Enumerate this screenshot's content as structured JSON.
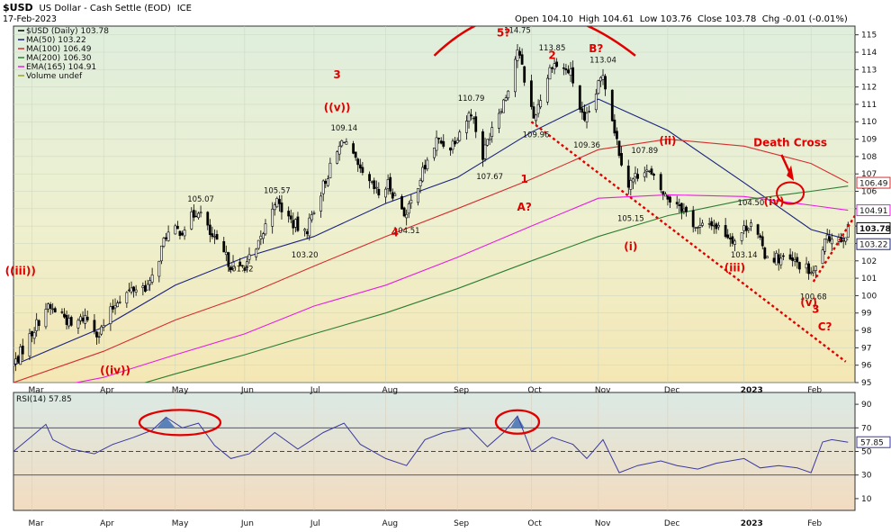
{
  "header": {
    "symbol": "$USD",
    "name": "US Dollar - Cash Settle (EOD)",
    "exchange": "ICE",
    "date": "17-Feb-2023",
    "ohlc": "Open 104.10  High 104.61  Low 103.76  Close 103.78  Chg -0.01 (-0.01%)"
  },
  "legend": [
    {
      "text": "$USD (Daily) 103.78",
      "color": "#000000"
    },
    {
      "text": "MA(50) 103.22",
      "color": "#1a237e"
    },
    {
      "text": "MA(100) 106.49",
      "color": "#d32f2f"
    },
    {
      "text": "MA(200) 106.30",
      "color": "#2e7d32"
    },
    {
      "text": "EMA(165) 104.91",
      "color": "#e91ee0"
    },
    {
      "text": "Volume undef",
      "color": "#9e9e2e"
    }
  ],
  "annotations": [
    {
      "text": "5?",
      "x": "2022-09-21",
      "y": 114.9
    },
    {
      "text": "2",
      "x": "2022-10-12",
      "y": 113.6
    },
    {
      "text": "B?",
      "x": "2022-10-31",
      "y": 114.0
    },
    {
      "text": "3",
      "x": "2022-07-11",
      "y": 112.5
    },
    {
      "text": "((v))",
      "x": "2022-07-11",
      "y": 110.6
    },
    {
      "text": "1",
      "x": "2022-09-30",
      "y": 106.5
    },
    {
      "text": "A?",
      "x": "2022-09-30",
      "y": 104.9
    },
    {
      "text": "4",
      "x": "2022-08-05",
      "y": 103.4
    },
    {
      "text": "((iii))",
      "x": "2022-02-24",
      "y": 101.2
    },
    {
      "text": "((iv))",
      "x": "2022-04-06",
      "y": 95.5
    },
    {
      "text": "(i)",
      "x": "2022-11-15",
      "y": 102.6
    },
    {
      "text": "(ii)",
      "x": "2022-12-01",
      "y": 108.7
    },
    {
      "text": "(iv)",
      "x": "2023-01-16",
      "y": 105.2
    },
    {
      "text": "(iii)",
      "x": "2022-12-30",
      "y": 101.4
    },
    {
      "text": "(v)",
      "x": "2023-01-31",
      "y": 99.4
    },
    {
      "text": "3",
      "x": "2023-02-03",
      "y": 99.0
    },
    {
      "text": "C?",
      "x": "2023-02-07",
      "y": 98.0
    },
    {
      "text": "Death Cross",
      "x": "2023-01-23",
      "y": 108.6
    }
  ],
  "price_labels": [
    {
      "text": "114.75",
      "x": "2022-09-27",
      "y": 115.1
    },
    {
      "text": "113.85",
      "x": "2022-10-12",
      "y": 114.1
    },
    {
      "text": "113.04",
      "x": "2022-11-03",
      "y": 113.4
    },
    {
      "text": "110.79",
      "x": "2022-09-07",
      "y": 111.2
    },
    {
      "text": "109.96",
      "x": "2022-10-05",
      "y": 109.1
    },
    {
      "text": "109.36",
      "x": "2022-10-27",
      "y": 108.5
    },
    {
      "text": "109.14",
      "x": "2022-07-14",
      "y": 109.5
    },
    {
      "text": "107.89",
      "x": "2022-11-21",
      "y": 108.2
    },
    {
      "text": "107.67",
      "x": "2022-09-15",
      "y": 106.7
    },
    {
      "text": "105.07",
      "x": "2022-05-13",
      "y": 105.4
    },
    {
      "text": "105.57",
      "x": "2022-06-15",
      "y": 105.9
    },
    {
      "text": "105.15",
      "x": "2022-11-15",
      "y": 104.3
    },
    {
      "text": "104.51",
      "x": "2022-08-10",
      "y": 103.6
    },
    {
      "text": "103.20",
      "x": "2022-06-27",
      "y": 102.2
    },
    {
      "text": "101.42",
      "x": "2022-05-30",
      "y": 101.4
    },
    {
      "text": "103.14",
      "x": "2023-01-03",
      "y": 102.2
    },
    {
      "text": "104.50",
      "x": "2023-01-06",
      "y": 105.2
    },
    {
      "text": "100.68",
      "x": "2023-02-02",
      "y": 99.8
    }
  ],
  "axis_tags": [
    {
      "text": "106.49",
      "color": "#d32f2f",
      "border": "#d32f2f",
      "y": 106.49
    },
    {
      "text": "104.91",
      "color": "#e91ee0",
      "border": "#e91ee0",
      "y": 104.91
    },
    {
      "text": "103.78",
      "color": "#000000",
      "border": "#000000",
      "y": 103.78
    },
    {
      "text": "103.22",
      "color": "#1a237e",
      "border": "#1a237e",
      "y": 103.22
    }
  ],
  "rsi": {
    "label": "RSI(14) 57.85",
    "value_tag": "57.85",
    "yticks": [
      "90",
      "70",
      "50",
      "30",
      "10"
    ]
  },
  "chart_data": {
    "type": "candlestick",
    "y_range": [
      95,
      115.5
    ],
    "x_range": [
      "2022-02-21",
      "2023-02-20"
    ],
    "x_tick_labels": [
      "Mar",
      "Apr",
      "May",
      "Jun",
      "Jul",
      "Aug",
      "Sep",
      "Oct",
      "Nov",
      "Dec",
      "2023",
      "Feb"
    ],
    "x_tick_dates": [
      "2022-03-01",
      "2022-04-01",
      "2022-05-02",
      "2022-06-01",
      "2022-07-01",
      "2022-08-01",
      "2022-09-01",
      "2022-10-03",
      "2022-11-01",
      "2022-12-01",
      "2023-01-03",
      "2023-02-01"
    ],
    "y_ticks": [
      95,
      96,
      97,
      98,
      99,
      100,
      101,
      102,
      103,
      104,
      105,
      106,
      107,
      108,
      109,
      110,
      111,
      112,
      113,
      114,
      115
    ],
    "price_path": [
      [
        "2022-02-21",
        96.0
      ],
      [
        "2022-03-04",
        98.6
      ],
      [
        "2022-03-07",
        99.3
      ],
      [
        "2022-03-14",
        99.0
      ],
      [
        "2022-03-18",
        98.2
      ],
      [
        "2022-03-24",
        98.8
      ],
      [
        "2022-03-30",
        97.8
      ],
      [
        "2022-04-07",
        99.8
      ],
      [
        "2022-04-14",
        100.4
      ],
      [
        "2022-04-21",
        100.6
      ],
      [
        "2022-04-28",
        103.5
      ],
      [
        "2022-05-05",
        103.8
      ],
      [
        "2022-05-12",
        105.0
      ],
      [
        "2022-05-17",
        103.5
      ],
      [
        "2022-05-26",
        101.8
      ],
      [
        "2022-05-30",
        101.5
      ],
      [
        "2022-06-06",
        102.5
      ],
      [
        "2022-06-14",
        105.5
      ],
      [
        "2022-06-21",
        104.3
      ],
      [
        "2022-06-27",
        103.5
      ],
      [
        "2022-07-01",
        105.0
      ],
      [
        "2022-07-07",
        107.0
      ],
      [
        "2022-07-14",
        109.1
      ],
      [
        "2022-07-21",
        107.0
      ],
      [
        "2022-07-29",
        105.8
      ],
      [
        "2022-08-02",
        106.4
      ],
      [
        "2022-08-10",
        104.6
      ],
      [
        "2022-08-15",
        106.5
      ],
      [
        "2022-08-23",
        108.9
      ],
      [
        "2022-08-29",
        108.6
      ],
      [
        "2022-09-07",
        110.6
      ],
      [
        "2022-09-12",
        108.0
      ],
      [
        "2022-09-16",
        109.8
      ],
      [
        "2022-09-22",
        111.5
      ],
      [
        "2022-09-27",
        114.2
      ],
      [
        "2022-10-04",
        110.2
      ],
      [
        "2022-10-12",
        113.4
      ],
      [
        "2022-10-20",
        112.8
      ],
      [
        "2022-10-26",
        109.8
      ],
      [
        "2022-11-03",
        112.8
      ],
      [
        "2022-11-10",
        108.3
      ],
      [
        "2022-11-14",
        106.4
      ],
      [
        "2022-11-21",
        107.4
      ],
      [
        "2022-11-30",
        105.7
      ],
      [
        "2022-12-06",
        105.3
      ],
      [
        "2022-12-14",
        103.8
      ],
      [
        "2022-12-20",
        104.2
      ],
      [
        "2022-12-30",
        103.2
      ],
      [
        "2023-01-06",
        104.3
      ],
      [
        "2023-01-12",
        102.4
      ],
      [
        "2023-01-19",
        102.1
      ],
      [
        "2023-01-27",
        101.8
      ],
      [
        "2023-02-02",
        101.2
      ],
      [
        "2023-02-06",
        102.8
      ],
      [
        "2023-02-10",
        103.5
      ],
      [
        "2023-02-14",
        103.3
      ],
      [
        "2023-02-17",
        103.78
      ]
    ],
    "ma_series": [
      {
        "name": "MA(50)",
        "color": "#1a237e",
        "points": [
          [
            "2022-02-21",
            96.0
          ],
          [
            "2022-04-01",
            98.2
          ],
          [
            "2022-05-02",
            100.6
          ],
          [
            "2022-06-01",
            102.2
          ],
          [
            "2022-07-01",
            103.4
          ],
          [
            "2022-08-01",
            105.3
          ],
          [
            "2022-09-01",
            106.8
          ],
          [
            "2022-10-03",
            109.4
          ],
          [
            "2022-11-01",
            111.3
          ],
          [
            "2022-12-01",
            109.5
          ],
          [
            "2023-01-03",
            106.5
          ],
          [
            "2023-02-01",
            103.8
          ],
          [
            "2023-02-17",
            103.22
          ]
        ]
      },
      {
        "name": "MA(100)",
        "color": "#d32f2f",
        "points": [
          [
            "2022-02-21",
            95.0
          ],
          [
            "2022-04-01",
            96.8
          ],
          [
            "2022-05-02",
            98.6
          ],
          [
            "2022-06-01",
            100.0
          ],
          [
            "2022-07-01",
            101.7
          ],
          [
            "2022-08-01",
            103.4
          ],
          [
            "2022-09-01",
            105.0
          ],
          [
            "2022-10-03",
            106.7
          ],
          [
            "2022-11-01",
            108.4
          ],
          [
            "2022-12-01",
            109.0
          ],
          [
            "2023-01-03",
            108.6
          ],
          [
            "2023-02-01",
            107.6
          ],
          [
            "2023-02-17",
            106.49
          ]
        ]
      },
      {
        "name": "EMA(165)",
        "color": "#e91ee0",
        "points": [
          [
            "2022-02-21",
            94.3
          ],
          [
            "2022-04-01",
            95.3
          ],
          [
            "2022-05-02",
            96.6
          ],
          [
            "2022-06-01",
            97.8
          ],
          [
            "2022-07-01",
            99.4
          ],
          [
            "2022-08-01",
            100.6
          ],
          [
            "2022-09-01",
            102.2
          ],
          [
            "2022-10-03",
            104.0
          ],
          [
            "2022-11-01",
            105.6
          ],
          [
            "2022-12-01",
            105.8
          ],
          [
            "2023-01-03",
            105.7
          ],
          [
            "2023-02-01",
            105.2
          ],
          [
            "2023-02-17",
            104.91
          ]
        ]
      },
      {
        "name": "MA(200)",
        "color": "#2e7d32",
        "points": [
          [
            "2022-02-21",
            93.2
          ],
          [
            "2022-04-01",
            94.3
          ],
          [
            "2022-05-02",
            95.5
          ],
          [
            "2022-06-01",
            96.6
          ],
          [
            "2022-07-01",
            97.8
          ],
          [
            "2022-08-01",
            99.0
          ],
          [
            "2022-09-01",
            100.4
          ],
          [
            "2022-10-03",
            102.0
          ],
          [
            "2022-11-01",
            103.4
          ],
          [
            "2022-12-01",
            104.6
          ],
          [
            "2023-01-03",
            105.5
          ],
          [
            "2023-02-01",
            106.0
          ],
          [
            "2023-02-17",
            106.3
          ]
        ]
      }
    ],
    "rsi_series": [
      [
        "2022-02-21",
        50
      ],
      [
        "2022-03-01",
        63
      ],
      [
        "2022-03-07",
        73
      ],
      [
        "2022-03-10",
        60
      ],
      [
        "2022-03-18",
        52
      ],
      [
        "2022-03-28",
        48
      ],
      [
        "2022-04-05",
        56
      ],
      [
        "2022-04-14",
        62
      ],
      [
        "2022-04-22",
        68
      ],
      [
        "2022-04-28",
        79
      ],
      [
        "2022-05-05",
        70
      ],
      [
        "2022-05-12",
        74
      ],
      [
        "2022-05-19",
        55
      ],
      [
        "2022-05-26",
        44
      ],
      [
        "2022-06-03",
        48
      ],
      [
        "2022-06-14",
        66
      ],
      [
        "2022-06-24",
        52
      ],
      [
        "2022-07-05",
        66
      ],
      [
        "2022-07-14",
        74
      ],
      [
        "2022-07-21",
        56
      ],
      [
        "2022-08-01",
        44
      ],
      [
        "2022-08-10",
        38
      ],
      [
        "2022-08-18",
        60
      ],
      [
        "2022-08-26",
        66
      ],
      [
        "2022-09-06",
        70
      ],
      [
        "2022-09-14",
        54
      ],
      [
        "2022-09-21",
        66
      ],
      [
        "2022-09-27",
        80
      ],
      [
        "2022-10-03",
        50
      ],
      [
        "2022-10-12",
        62
      ],
      [
        "2022-10-21",
        56
      ],
      [
        "2022-10-27",
        44
      ],
      [
        "2022-11-03",
        60
      ],
      [
        "2022-11-10",
        32
      ],
      [
        "2022-11-18",
        38
      ],
      [
        "2022-11-28",
        42
      ],
      [
        "2022-12-05",
        38
      ],
      [
        "2022-12-14",
        35
      ],
      [
        "2022-12-22",
        40
      ],
      [
        "2023-01-03",
        44
      ],
      [
        "2023-01-10",
        36
      ],
      [
        "2023-01-18",
        38
      ],
      [
        "2023-01-26",
        36
      ],
      [
        "2023-02-01",
        32
      ],
      [
        "2023-02-06",
        58
      ],
      [
        "2023-02-10",
        60
      ],
      [
        "2023-02-17",
        57.85
      ]
    ]
  }
}
